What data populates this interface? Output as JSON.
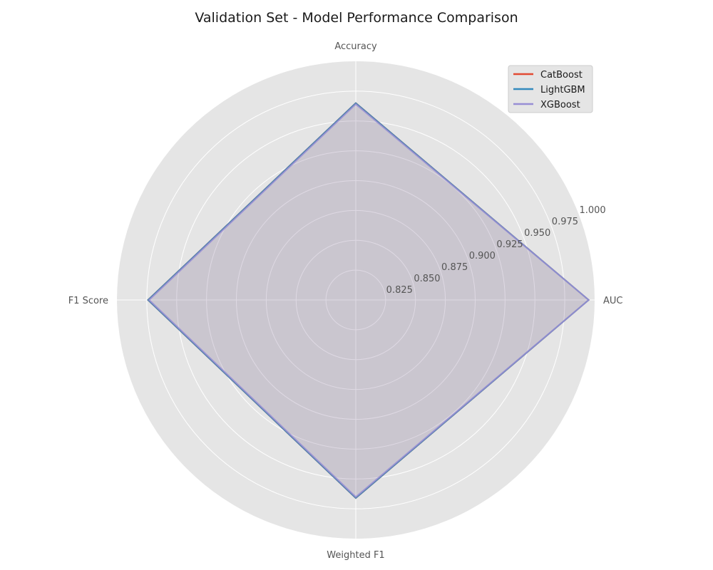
{
  "chart_data": {
    "type": "radar",
    "title": "Validation Set - Model Performance Comparison",
    "axes": [
      "Accuracy",
      "AUC",
      "Weighted F1",
      "F1 Score"
    ],
    "rlim": [
      0.8,
      1.0
    ],
    "rticks": [
      0.825,
      0.85,
      0.875,
      0.9,
      0.925,
      0.95,
      0.975,
      1.0
    ],
    "rtick_labels": [
      "0.825",
      "0.850",
      "0.875",
      "0.900",
      "0.925",
      "0.950",
      "0.975",
      "1.000"
    ],
    "grid": true,
    "legend_position": "top-right",
    "series": [
      {
        "name": "CatBoost",
        "color": "#E24A33",
        "values": [
          0.965,
          0.995,
          0.966,
          0.974
        ]
      },
      {
        "name": "LightGBM",
        "color": "#348ABD",
        "values": [
          0.965,
          0.995,
          0.966,
          0.974
        ]
      },
      {
        "name": "XGBoost",
        "color": "#988ED5",
        "values": [
          0.964,
          0.995,
          0.965,
          0.973
        ]
      }
    ]
  }
}
